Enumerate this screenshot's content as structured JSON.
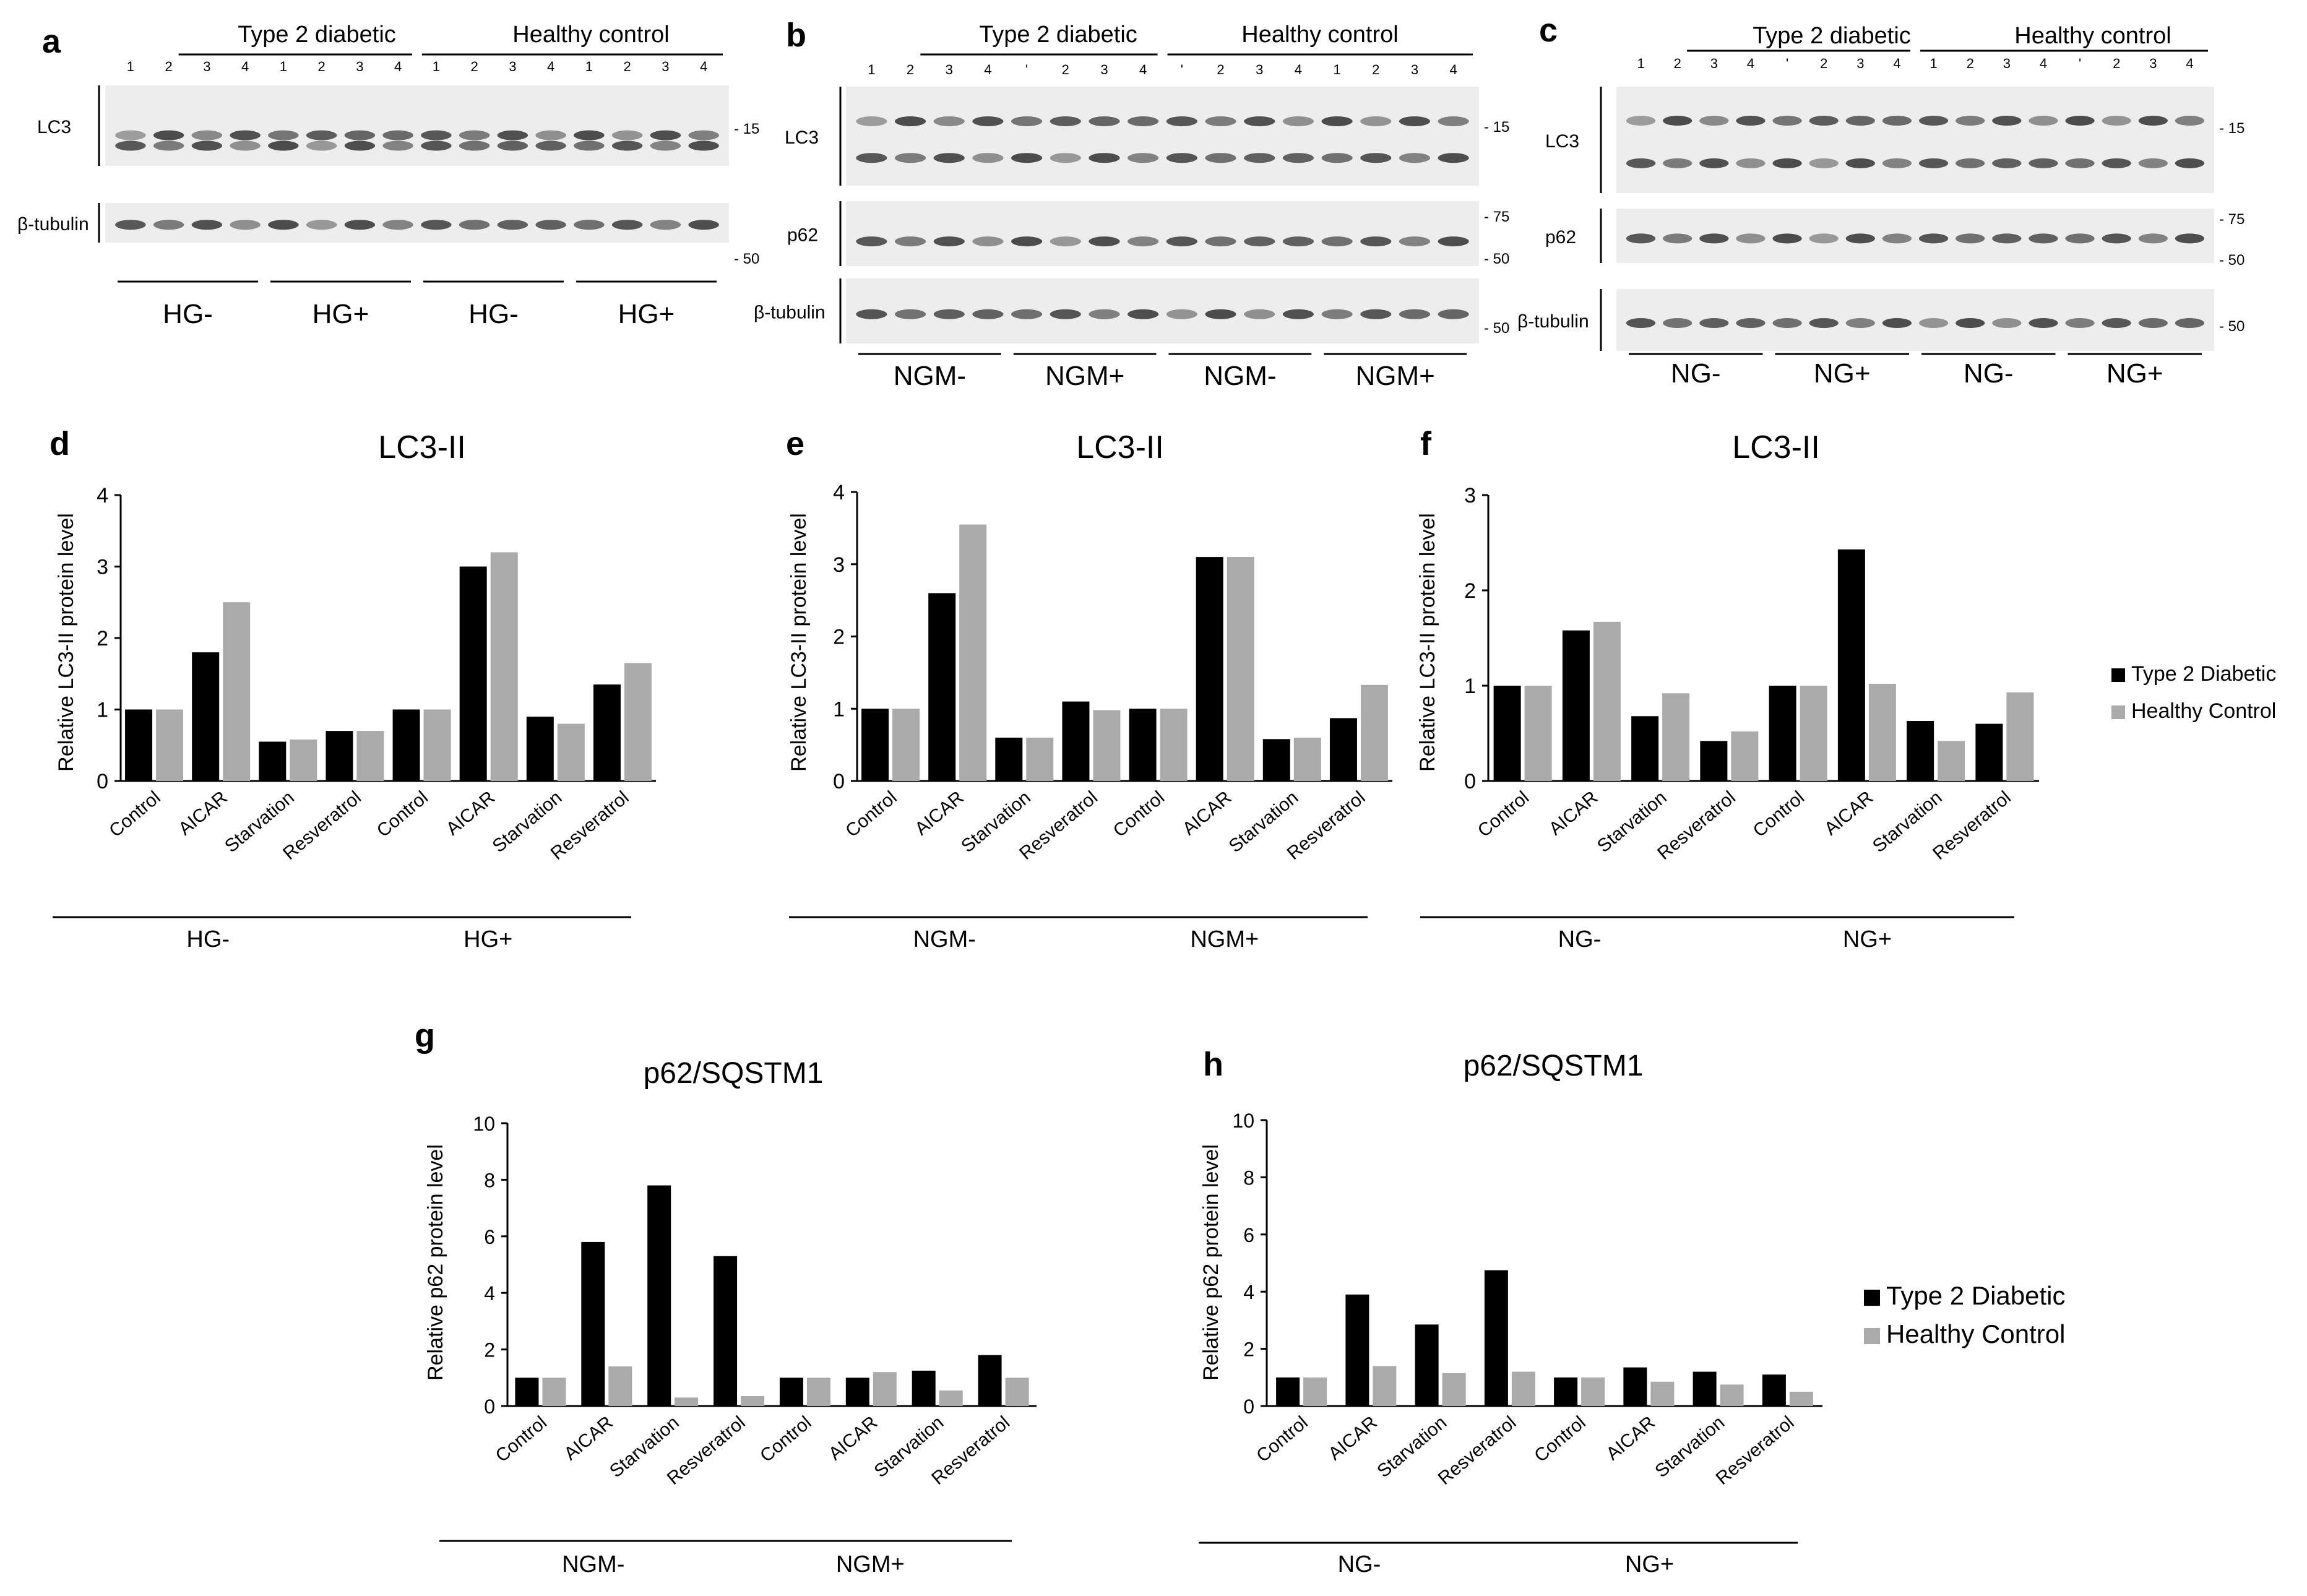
{
  "colors": {
    "diabetic": "#000000",
    "control": "#aaaaaa",
    "blot_bg": "#ededed",
    "band": "#3a3a3a"
  },
  "blots": [
    {
      "letter": "a",
      "group_labels": [
        "Type 2 diabetic",
        "Healthy control"
      ],
      "lane_numbers": [
        "1",
        "2",
        "3",
        "4",
        "1",
        "2",
        "3",
        "4",
        "1",
        "2",
        "3",
        "4",
        "1",
        "2",
        "3",
        "4"
      ],
      "rows": [
        {
          "label": "LC3",
          "markers": [
            "- 15"
          ]
        },
        {
          "label": "β-tubulin",
          "markers": [
            "- 50"
          ]
        }
      ],
      "conditions": [
        "HG-",
        "HG+",
        "HG-",
        "HG+"
      ]
    },
    {
      "letter": "b",
      "group_labels": [
        "Type 2 diabetic",
        "Healthy control"
      ],
      "lane_numbers": [
        "1",
        "2",
        "3",
        "4",
        "'",
        "2",
        "3",
        "4",
        "'",
        "2",
        "3",
        "4",
        "1",
        "2",
        "3",
        "4"
      ],
      "rows": [
        {
          "label": "LC3",
          "markers": [
            "- 15"
          ]
        },
        {
          "label": "p62",
          "markers": [
            "- 75",
            "- 50"
          ]
        },
        {
          "label": "β-tubulin",
          "markers": [
            "- 50"
          ]
        }
      ],
      "conditions": [
        "NGM-",
        "NGM+",
        "NGM-",
        "NGM+"
      ]
    },
    {
      "letter": "c",
      "group_labels": [
        "Type 2 diabetic",
        "Healthy control"
      ],
      "lane_numbers": [
        "1",
        "2",
        "3",
        "4",
        "'",
        "2",
        "3",
        "4",
        "1",
        "2",
        "3",
        "4",
        "'",
        "2",
        "3",
        "4"
      ],
      "rows": [
        {
          "label": "LC3",
          "markers": [
            "- 15"
          ]
        },
        {
          "label": "p62",
          "markers": [
            "- 75",
            "- 50"
          ]
        },
        {
          "label": "β-tubulin",
          "markers": [
            "- 50"
          ]
        }
      ],
      "conditions": [
        "NG-",
        "NG+",
        "NG-",
        "NG+"
      ]
    }
  ],
  "legend_small": [
    "Type 2 Diabetic",
    "Healthy Control"
  ],
  "legend_large": [
    "Type 2 Diabetic",
    "Healthy Control"
  ],
  "chart_data": [
    {
      "panel": "d",
      "type": "bar",
      "title": "LC3-II",
      "ylabel": "Relative LC3-II protein level",
      "ylim": [
        0,
        4
      ],
      "yticks": [
        "0",
        "1",
        "2",
        "3",
        "4"
      ],
      "categories": [
        "Control",
        "AICAR",
        "Starvation",
        "Resveratrol",
        "Control",
        "AICAR",
        "Starvation",
        "Resveratrol"
      ],
      "groups": [
        "HG-",
        "HG+"
      ],
      "series": [
        {
          "name": "Type 2 Diabetic",
          "values": [
            1.0,
            1.8,
            0.55,
            0.7,
            1.0,
            3.0,
            0.9,
            1.35
          ]
        },
        {
          "name": "Healthy Control",
          "values": [
            1.0,
            2.5,
            0.58,
            0.7,
            1.0,
            3.2,
            0.8,
            1.65
          ]
        }
      ]
    },
    {
      "panel": "e",
      "type": "bar",
      "title": "LC3-II",
      "ylabel": "Relative LC3-II protein level",
      "ylim": [
        0,
        4
      ],
      "yticks": [
        "0",
        "1",
        "2",
        "3",
        "4"
      ],
      "categories": [
        "Control",
        "AICAR",
        "Starvation",
        "Resveratrol",
        "Control",
        "AICAR",
        "Starvation",
        "Resveratrol"
      ],
      "groups": [
        "NGM-",
        "NGM+"
      ],
      "series": [
        {
          "name": "Type 2 Diabetic",
          "values": [
            1.0,
            2.6,
            0.6,
            1.1,
            1.0,
            3.1,
            0.58,
            0.87
          ]
        },
        {
          "name": "Healthy Control",
          "values": [
            1.0,
            3.55,
            0.6,
            0.98,
            1.0,
            3.1,
            0.6,
            1.33
          ]
        }
      ]
    },
    {
      "panel": "f",
      "type": "bar",
      "title": "LC3-II",
      "ylabel": "Relative LC3-II protein level",
      "ylim": [
        0,
        3
      ],
      "yticks": [
        "0",
        "1",
        "2",
        "3"
      ],
      "categories": [
        "Control",
        "AICAR",
        "Starvation",
        "Resveratrol",
        "Control",
        "AICAR",
        "Starvation",
        "Resveratrol"
      ],
      "groups": [
        "NG-",
        "NG+"
      ],
      "series": [
        {
          "name": "Type 2 Diabetic",
          "values": [
            1.0,
            1.58,
            0.68,
            0.42,
            1.0,
            2.43,
            0.63,
            0.6
          ]
        },
        {
          "name": "Healthy Control",
          "values": [
            1.0,
            1.67,
            0.92,
            0.52,
            1.0,
            1.02,
            0.42,
            0.93
          ]
        }
      ]
    },
    {
      "panel": "g",
      "type": "bar",
      "title": "p62/SQSTM1",
      "ylabel": "Relative p62 protein level",
      "ylim": [
        0,
        10
      ],
      "yticks": [
        "0",
        "2",
        "4",
        "6",
        "8",
        "10"
      ],
      "categories": [
        "Control",
        "AICAR",
        "Starvation",
        "Resveratrol",
        "Control",
        "AICAR",
        "Starvation",
        "Resveratrol"
      ],
      "groups": [
        "NGM-",
        "NGM+"
      ],
      "series": [
        {
          "name": "Type 2 Diabetic",
          "values": [
            1.0,
            5.8,
            7.8,
            5.3,
            1.0,
            1.0,
            1.25,
            1.8
          ]
        },
        {
          "name": "Healthy Control",
          "values": [
            1.0,
            1.4,
            0.3,
            0.35,
            1.0,
            1.2,
            0.55,
            1.0
          ]
        }
      ]
    },
    {
      "panel": "h",
      "type": "bar",
      "title": "p62/SQSTM1",
      "ylabel": "Relative p62 protein level",
      "ylim": [
        0,
        10
      ],
      "yticks": [
        "0",
        "2",
        "4",
        "6",
        "8",
        "10"
      ],
      "categories": [
        "Control",
        "AICAR",
        "Starvation",
        "Resveratrol",
        "Control",
        "AICAR",
        "Starvation",
        "Resveratrol"
      ],
      "groups": [
        "NG-",
        "NG+"
      ],
      "series": [
        {
          "name": "Type 2 Diabetic",
          "values": [
            1.0,
            3.9,
            2.85,
            4.75,
            1.0,
            1.35,
            1.2,
            1.1
          ]
        },
        {
          "name": "Healthy Control",
          "values": [
            1.0,
            1.4,
            1.15,
            1.2,
            1.0,
            0.85,
            0.75,
            0.5
          ]
        }
      ]
    }
  ]
}
